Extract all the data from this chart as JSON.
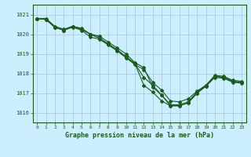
{
  "title": "Graphe pression niveau de la mer (hPa)",
  "bg_color": "#cceeff",
  "grid_color": "#aaccdd",
  "line_color": "#1a5c1a",
  "xlim": [
    -0.5,
    23.5
  ],
  "ylim": [
    1015.5,
    1021.5
  ],
  "yticks": [
    1016,
    1017,
    1018,
    1019,
    1020,
    1021
  ],
  "xticks": [
    0,
    1,
    2,
    3,
    4,
    5,
    6,
    7,
    8,
    9,
    10,
    11,
    12,
    13,
    14,
    15,
    16,
    17,
    18,
    19,
    20,
    21,
    22,
    23
  ],
  "lines": [
    [
      1020.8,
      1020.8,
      1020.4,
      1020.25,
      1020.4,
      1020.3,
      1020.0,
      1019.9,
      1019.6,
      1019.3,
      1019.0,
      1018.55,
      1018.3,
      1017.3,
      1016.9,
      1016.35,
      1016.35,
      1016.5,
      1017.0,
      1017.35,
      1017.8,
      1017.75,
      1017.55,
      1017.5
    ],
    [
      1020.8,
      1020.75,
      1020.35,
      1020.2,
      1020.35,
      1020.2,
      1019.85,
      1019.75,
      1019.45,
      1019.15,
      1018.8,
      1018.45,
      1018.2,
      1017.55,
      1017.15,
      1016.6,
      1016.55,
      1016.7,
      1017.1,
      1017.4,
      1017.85,
      1017.8,
      1017.6,
      1017.55
    ],
    [
      1020.8,
      1020.75,
      1020.35,
      1020.2,
      1020.4,
      1020.25,
      1020.0,
      1019.8,
      1019.5,
      1019.2,
      1018.85,
      1018.5,
      1017.8,
      1017.4,
      1016.9,
      1016.4,
      1016.4,
      1016.55,
      1017.05,
      1017.4,
      1017.9,
      1017.85,
      1017.65,
      1017.6
    ],
    [
      1020.8,
      1020.75,
      1020.35,
      1020.2,
      1020.4,
      1020.25,
      1020.0,
      1019.8,
      1019.5,
      1019.2,
      1018.85,
      1018.5,
      1017.4,
      1017.05,
      1016.6,
      1016.35,
      1016.35,
      1016.5,
      1017.0,
      1017.35,
      1017.85,
      1017.8,
      1017.6,
      1017.55
    ]
  ],
  "spine_color": "#1a5c1a",
  "tick_color": "#1a5c1a",
  "marker": "D",
  "markersize": 2.0,
  "linewidth": 0.8
}
